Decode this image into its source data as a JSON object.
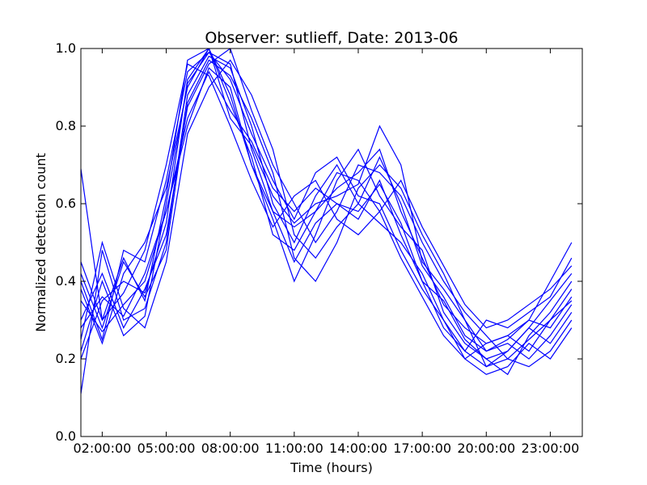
{
  "chart_data": {
    "type": "line",
    "title": "Observer: sutlieff, Date: 2013-06",
    "xlabel": "Time (hours)",
    "ylabel": "Normalized detection count",
    "xlim": [
      1.0,
      24.5
    ],
    "ylim": [
      0.0,
      1.0
    ],
    "x_ticks": [
      2,
      5,
      8,
      11,
      14,
      17,
      20,
      23
    ],
    "x_tick_labels": [
      "02:00:00",
      "05:00:00",
      "08:00:00",
      "11:00:00",
      "14:00:00",
      "17:00:00",
      "20:00:00",
      "23:00:00"
    ],
    "y_ticks": [
      0.0,
      0.2,
      0.4,
      0.6,
      0.8,
      1.0
    ],
    "y_tick_labels": [
      "0.0",
      "0.2",
      "0.4",
      "0.6",
      "0.8",
      "1.0"
    ],
    "grid": false,
    "line_color": "#0000ff",
    "x": [
      1,
      2,
      3,
      4,
      5,
      6,
      7,
      8,
      9,
      10,
      11,
      12,
      13,
      14,
      15,
      16,
      17,
      18,
      19,
      20,
      21,
      22,
      23,
      24
    ],
    "series": [
      {
        "values": [
          0.69,
          0.3,
          0.46,
          0.35,
          0.62,
          0.97,
          1.0,
          0.82,
          0.75,
          0.62,
          0.55,
          0.6,
          0.62,
          0.65,
          0.8,
          0.7,
          0.45,
          0.38,
          0.3,
          0.22,
          0.25,
          0.3,
          0.4,
          0.5
        ]
      },
      {
        "values": [
          0.35,
          0.27,
          0.34,
          0.4,
          0.58,
          0.8,
          0.95,
          0.9,
          0.7,
          0.58,
          0.45,
          0.55,
          0.6,
          0.58,
          0.65,
          0.55,
          0.4,
          0.35,
          0.25,
          0.2,
          0.22,
          0.28,
          0.35,
          0.42
        ]
      },
      {
        "values": [
          0.11,
          0.48,
          0.3,
          0.33,
          0.5,
          0.88,
          0.98,
          0.95,
          0.8,
          0.6,
          0.5,
          0.62,
          0.7,
          0.6,
          0.55,
          0.5,
          0.42,
          0.3,
          0.22,
          0.18,
          0.2,
          0.25,
          0.3,
          0.35
        ]
      },
      {
        "values": [
          0.2,
          0.35,
          0.4,
          0.37,
          0.55,
          0.92,
          1.0,
          0.86,
          0.72,
          0.52,
          0.48,
          0.58,
          0.64,
          0.68,
          0.74,
          0.58,
          0.46,
          0.34,
          0.28,
          0.24,
          0.26,
          0.22,
          0.3,
          0.38
        ]
      },
      {
        "values": [
          0.4,
          0.25,
          0.48,
          0.45,
          0.66,
          0.94,
          0.99,
          0.92,
          0.78,
          0.66,
          0.56,
          0.68,
          0.72,
          0.62,
          0.6,
          0.48,
          0.38,
          0.3,
          0.2,
          0.16,
          0.18,
          0.24,
          0.2,
          0.28
        ]
      },
      {
        "values": [
          0.3,
          0.42,
          0.28,
          0.38,
          0.52,
          0.85,
          0.96,
          1.0,
          0.84,
          0.7,
          0.6,
          0.5,
          0.58,
          0.7,
          0.68,
          0.62,
          0.5,
          0.4,
          0.32,
          0.26,
          0.2,
          0.18,
          0.22,
          0.3
        ]
      },
      {
        "values": [
          0.45,
          0.3,
          0.37,
          0.48,
          0.7,
          0.96,
          0.93,
          0.8,
          0.66,
          0.54,
          0.62,
          0.66,
          0.56,
          0.52,
          0.58,
          0.66,
          0.54,
          0.44,
          0.34,
          0.28,
          0.3,
          0.34,
          0.38,
          0.44
        ]
      },
      {
        "values": [
          0.25,
          0.5,
          0.33,
          0.28,
          0.45,
          0.78,
          0.9,
          0.97,
          0.88,
          0.74,
          0.52,
          0.46,
          0.54,
          0.6,
          0.72,
          0.6,
          0.44,
          0.36,
          0.26,
          0.22,
          0.24,
          0.2,
          0.26,
          0.34
        ]
      },
      {
        "values": [
          0.38,
          0.24,
          0.42,
          0.5,
          0.64,
          0.9,
          1.0,
          0.88,
          0.7,
          0.56,
          0.4,
          0.52,
          0.66,
          0.74,
          0.62,
          0.54,
          0.48,
          0.32,
          0.24,
          0.2,
          0.16,
          0.26,
          0.32,
          0.4
        ]
      },
      {
        "values": [
          0.28,
          0.36,
          0.31,
          0.42,
          0.58,
          0.82,
          0.94,
          0.84,
          0.76,
          0.64,
          0.58,
          0.64,
          0.6,
          0.56,
          0.66,
          0.52,
          0.4,
          0.28,
          0.22,
          0.3,
          0.28,
          0.32,
          0.36,
          0.46
        ]
      },
      {
        "values": [
          0.42,
          0.28,
          0.45,
          0.36,
          0.48,
          0.86,
          0.97,
          0.93,
          0.82,
          0.68,
          0.46,
          0.4,
          0.5,
          0.64,
          0.7,
          0.64,
          0.52,
          0.42,
          0.3,
          0.18,
          0.22,
          0.28,
          0.24,
          0.32
        ]
      },
      {
        "values": [
          0.22,
          0.4,
          0.26,
          0.31,
          0.6,
          0.91,
          0.99,
          0.96,
          0.74,
          0.58,
          0.54,
          0.58,
          0.68,
          0.66,
          0.58,
          0.46,
          0.36,
          0.26,
          0.2,
          0.24,
          0.26,
          0.3,
          0.28,
          0.36
        ]
      }
    ]
  }
}
